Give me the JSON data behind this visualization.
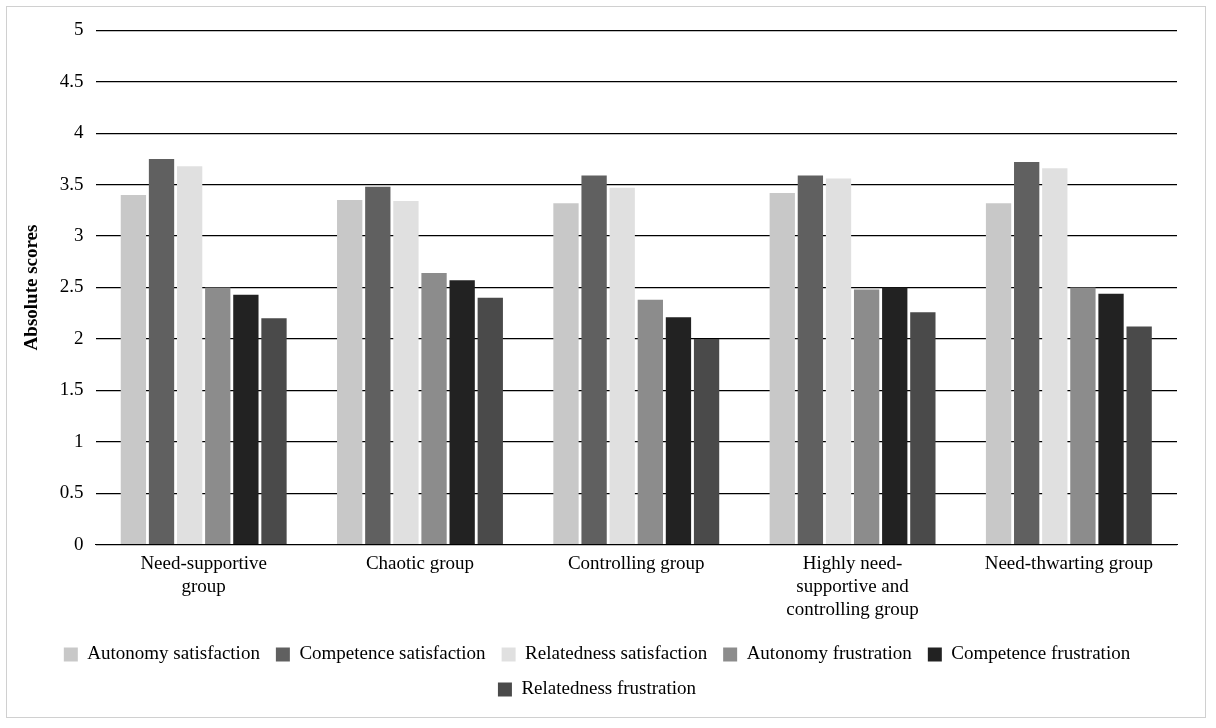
{
  "chart_data": {
    "type": "bar",
    "ylabel": "Absolute scores",
    "categories": [
      "Need-supportive group",
      "Chaotic group",
      "Controlling group",
      "Highly need-supportive and controlling group",
      "Need-thwarting group"
    ],
    "series": [
      {
        "name": "Autonomy satisfaction",
        "color": "#c8c8c8",
        "values": [
          3.4,
          3.35,
          3.32,
          3.42,
          3.32
        ]
      },
      {
        "name": "Competence satisfaction",
        "color": "#606060",
        "values": [
          3.75,
          3.48,
          3.59,
          3.59,
          3.72
        ]
      },
      {
        "name": "Relatedness satisfaction",
        "color": "#e0e0e0",
        "values": [
          3.68,
          3.34,
          3.47,
          3.56,
          3.66
        ]
      },
      {
        "name": "Autonomy frustration",
        "color": "#8c8c8c",
        "values": [
          2.5,
          2.64,
          2.38,
          2.48,
          2.5
        ]
      },
      {
        "name": "Competence frustration",
        "color": "#222222",
        "values": [
          2.43,
          2.57,
          2.21,
          2.5,
          2.44
        ]
      },
      {
        "name": "Relatedness frustration",
        "color": "#4a4a4a",
        "values": [
          2.2,
          2.4,
          2.0,
          2.26,
          2.12
        ]
      }
    ],
    "ylim": [
      0,
      5
    ],
    "yticks": [
      0,
      0.5,
      1,
      1.5,
      2,
      2.5,
      3,
      3.5,
      4,
      4.5,
      5
    ],
    "grid": "y",
    "legend": "bottom"
  }
}
